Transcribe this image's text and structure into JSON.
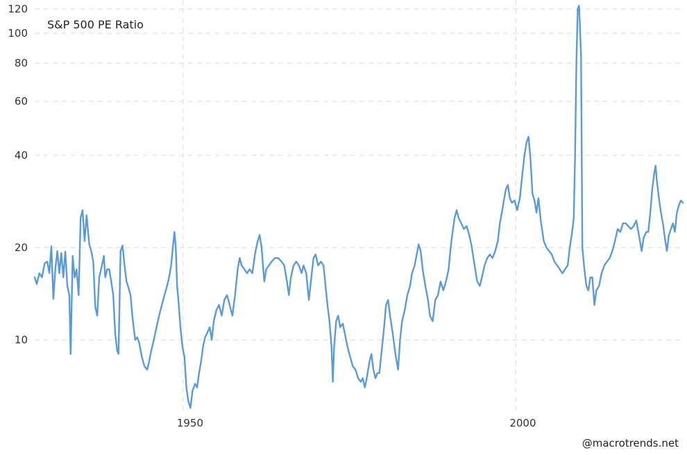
{
  "chart_data": {
    "type": "line",
    "title": "S&P 500 PE Ratio",
    "xlabel": "",
    "ylabel": "",
    "yscale": "log",
    "ylim": [
      5.5,
      125
    ],
    "xlim": [
      1927.7,
      2025.2
    ],
    "y_ticks": [
      10,
      20,
      40,
      60,
      80,
      100,
      120
    ],
    "x_ticks": [
      1950,
      2000
    ],
    "grid": {
      "horizontal": true,
      "vertical": true,
      "style": "dashed"
    },
    "legend": null,
    "line_color": "#5b9bd5",
    "series": [
      {
        "name": "S&P 500 PE Ratio",
        "points": [
          [
            1927.7,
            16.0
          ],
          [
            1928.0,
            15.2
          ],
          [
            1928.4,
            16.5
          ],
          [
            1928.8,
            16.0
          ],
          [
            1929.2,
            17.8
          ],
          [
            1929.6,
            18.0
          ],
          [
            1929.9,
            16.5
          ],
          [
            1930.2,
            20.2
          ],
          [
            1930.5,
            13.6
          ],
          [
            1930.8,
            17.0
          ],
          [
            1931.1,
            19.5
          ],
          [
            1931.4,
            16.5
          ],
          [
            1931.7,
            19.2
          ],
          [
            1932.0,
            16.0
          ],
          [
            1932.3,
            19.4
          ],
          [
            1932.6,
            15.0
          ],
          [
            1932.9,
            14.0
          ],
          [
            1933.1,
            9.0
          ],
          [
            1933.4,
            18.8
          ],
          [
            1933.7,
            16.0
          ],
          [
            1934.0,
            17.0
          ],
          [
            1934.3,
            14.0
          ],
          [
            1934.6,
            25.0
          ],
          [
            1934.9,
            26.5
          ],
          [
            1935.2,
            21.0
          ],
          [
            1935.5,
            25.5
          ],
          [
            1935.9,
            20.5
          ],
          [
            1936.2,
            19.5
          ],
          [
            1936.5,
            18.0
          ],
          [
            1936.8,
            12.8
          ],
          [
            1937.1,
            12.0
          ],
          [
            1937.4,
            16.0
          ],
          [
            1937.8,
            17.5
          ],
          [
            1938.1,
            18.8
          ],
          [
            1938.3,
            16.0
          ],
          [
            1938.6,
            17.0
          ],
          [
            1938.9,
            17.0
          ],
          [
            1939.2,
            15.5
          ],
          [
            1939.5,
            14.0
          ],
          [
            1939.8,
            10.5
          ],
          [
            1940.1,
            9.2
          ],
          [
            1940.3,
            9.0
          ],
          [
            1940.6,
            19.5
          ],
          [
            1940.9,
            20.3
          ],
          [
            1941.2,
            17.5
          ],
          [
            1941.5,
            15.5
          ],
          [
            1941.8,
            14.8
          ],
          [
            1942.1,
            14.0
          ],
          [
            1942.4,
            11.8
          ],
          [
            1942.8,
            10.0
          ],
          [
            1943.1,
            10.2
          ],
          [
            1943.4,
            9.8
          ],
          [
            1943.8,
            8.8
          ],
          [
            1944.2,
            8.2
          ],
          [
            1944.6,
            8.0
          ],
          [
            1944.9,
            8.5
          ],
          [
            1945.2,
            9.2
          ],
          [
            1945.6,
            10.0
          ],
          [
            1946.0,
            11.0
          ],
          [
            1946.4,
            12.0
          ],
          [
            1946.8,
            13.0
          ],
          [
            1947.2,
            14.0
          ],
          [
            1947.6,
            15.0
          ],
          [
            1947.9,
            16.0
          ],
          [
            1948.2,
            17.5
          ],
          [
            1948.5,
            20.5
          ],
          [
            1948.7,
            22.5
          ],
          [
            1948.9,
            20.0
          ],
          [
            1949.1,
            15.0
          ],
          [
            1949.3,
            13.5
          ],
          [
            1949.6,
            11.0
          ],
          [
            1949.9,
            9.5
          ],
          [
            1950.2,
            8.8
          ],
          [
            1950.5,
            7.0
          ],
          [
            1950.8,
            6.3
          ],
          [
            1951.1,
            6.0
          ],
          [
            1951.4,
            6.8
          ],
          [
            1951.8,
            7.2
          ],
          [
            1952.1,
            7.0
          ],
          [
            1952.4,
            7.8
          ],
          [
            1952.7,
            8.5
          ],
          [
            1953.0,
            9.5
          ],
          [
            1953.3,
            10.2
          ],
          [
            1953.6,
            10.5
          ],
          [
            1954.0,
            11.0
          ],
          [
            1954.3,
            10.0
          ],
          [
            1954.6,
            11.5
          ],
          [
            1955.0,
            12.5
          ],
          [
            1955.4,
            13.0
          ],
          [
            1955.8,
            12.0
          ],
          [
            1956.2,
            13.5
          ],
          [
            1956.6,
            14.0
          ],
          [
            1957.0,
            13.0
          ],
          [
            1957.4,
            12.0
          ],
          [
            1957.8,
            14.0
          ],
          [
            1958.2,
            17.0
          ],
          [
            1958.5,
            18.5
          ],
          [
            1958.8,
            17.5
          ],
          [
            1959.2,
            17.0
          ],
          [
            1959.6,
            16.5
          ],
          [
            1960.0,
            17.0
          ],
          [
            1960.4,
            16.5
          ],
          [
            1960.8,
            19.0
          ],
          [
            1961.2,
            21.0
          ],
          [
            1961.5,
            22.0
          ],
          [
            1961.8,
            20.0
          ],
          [
            1962.2,
            15.5
          ],
          [
            1962.5,
            17.0
          ],
          [
            1962.9,
            17.5
          ],
          [
            1963.3,
            18.0
          ],
          [
            1963.8,
            18.5
          ],
          [
            1964.3,
            18.5
          ],
          [
            1964.8,
            18.0
          ],
          [
            1965.2,
            17.5
          ],
          [
            1965.6,
            15.5
          ],
          [
            1965.9,
            14.0
          ],
          [
            1966.2,
            16.0
          ],
          [
            1966.6,
            17.5
          ],
          [
            1967.0,
            18.0
          ],
          [
            1967.4,
            17.5
          ],
          [
            1967.8,
            16.5
          ],
          [
            1968.1,
            17.5
          ],
          [
            1968.5,
            16.5
          ],
          [
            1968.9,
            13.5
          ],
          [
            1969.2,
            15.5
          ],
          [
            1969.6,
            18.5
          ],
          [
            1969.9,
            19.0
          ],
          [
            1970.3,
            17.5
          ],
          [
            1970.7,
            18.0
          ],
          [
            1971.1,
            17.5
          ],
          [
            1971.4,
            15.0
          ],
          [
            1971.7,
            13.0
          ],
          [
            1972.0,
            11.5
          ],
          [
            1972.3,
            9.5
          ],
          [
            1972.5,
            7.3
          ],
          [
            1972.7,
            9.5
          ],
          [
            1973.0,
            11.5
          ],
          [
            1973.3,
            12.0
          ],
          [
            1973.6,
            11.0
          ],
          [
            1974.0,
            11.3
          ],
          [
            1974.3,
            10.5
          ],
          [
            1974.7,
            9.5
          ],
          [
            1975.1,
            8.8
          ],
          [
            1975.5,
            8.2
          ],
          [
            1975.9,
            8.0
          ],
          [
            1976.3,
            7.5
          ],
          [
            1976.7,
            7.3
          ],
          [
            1977.0,
            7.5
          ],
          [
            1977.3,
            7.0
          ],
          [
            1977.6,
            7.5
          ],
          [
            1978.0,
            8.5
          ],
          [
            1978.3,
            9.0
          ],
          [
            1978.6,
            8.0
          ],
          [
            1978.9,
            7.5
          ],
          [
            1979.2,
            7.8
          ],
          [
            1979.5,
            7.8
          ],
          [
            1979.8,
            9.0
          ],
          [
            1980.2,
            11.0
          ],
          [
            1980.5,
            13.0
          ],
          [
            1980.8,
            13.5
          ],
          [
            1981.1,
            12.0
          ],
          [
            1981.5,
            10.5
          ],
          [
            1981.9,
            9.0
          ],
          [
            1982.3,
            8.0
          ],
          [
            1982.6,
            10.0
          ],
          [
            1982.9,
            11.5
          ],
          [
            1983.3,
            12.5
          ],
          [
            1983.7,
            14.0
          ],
          [
            1984.1,
            15.0
          ],
          [
            1984.4,
            16.5
          ],
          [
            1984.8,
            17.5
          ],
          [
            1985.1,
            19.0
          ],
          [
            1985.4,
            20.5
          ],
          [
            1985.7,
            19.5
          ],
          [
            1986.0,
            17.0
          ],
          [
            1986.4,
            15.0
          ],
          [
            1986.8,
            13.5
          ],
          [
            1987.1,
            12.0
          ],
          [
            1987.5,
            11.5
          ],
          [
            1987.9,
            13.5
          ],
          [
            1988.3,
            14.0
          ],
          [
            1988.7,
            15.5
          ],
          [
            1989.1,
            14.5
          ],
          [
            1989.5,
            15.5
          ],
          [
            1989.9,
            17.0
          ],
          [
            1990.2,
            20.0
          ],
          [
            1990.5,
            22.5
          ],
          [
            1990.8,
            25.0
          ],
          [
            1991.1,
            26.5
          ],
          [
            1991.4,
            25.0
          ],
          [
            1991.8,
            24.0
          ],
          [
            1992.2,
            23.0
          ],
          [
            1992.6,
            23.5
          ],
          [
            1993.0,
            22.0
          ],
          [
            1993.4,
            20.0
          ],
          [
            1993.8,
            17.5
          ],
          [
            1994.2,
            15.5
          ],
          [
            1994.6,
            15.0
          ],
          [
            1994.9,
            16.0
          ],
          [
            1995.3,
            17.5
          ],
          [
            1995.7,
            18.5
          ],
          [
            1996.1,
            19.0
          ],
          [
            1996.5,
            18.5
          ],
          [
            1996.9,
            19.5
          ],
          [
            1997.3,
            21.0
          ],
          [
            1997.6,
            24.0
          ],
          [
            1997.9,
            26.0
          ],
          [
            1998.2,
            28.5
          ],
          [
            1998.5,
            31.0
          ],
          [
            1998.8,
            32.0
          ],
          [
            1999.1,
            29.0
          ],
          [
            1999.4,
            28.0
          ],
          [
            1999.8,
            28.5
          ],
          [
            2000.2,
            26.5
          ],
          [
            2000.6,
            29.0
          ],
          [
            2001.0,
            35.0
          ],
          [
            2001.3,
            40.0
          ],
          [
            2001.6,
            44.0
          ],
          [
            2001.9,
            46.0
          ],
          [
            2002.2,
            39.0
          ],
          [
            2002.5,
            30.0
          ],
          [
            2002.8,
            28.5
          ],
          [
            2003.1,
            26.0
          ],
          [
            2003.4,
            29.0
          ],
          [
            2003.8,
            24.0
          ],
          [
            2004.2,
            21.0
          ],
          [
            2004.6,
            20.0
          ],
          [
            2005.0,
            19.5
          ],
          [
            2005.4,
            19.0
          ],
          [
            2005.8,
            18.0
          ],
          [
            2006.2,
            17.5
          ],
          [
            2006.6,
            17.0
          ],
          [
            2007.0,
            16.5
          ],
          [
            2007.4,
            17.0
          ],
          [
            2007.8,
            17.5
          ],
          [
            2008.1,
            20.0
          ],
          [
            2008.4,
            22.0
          ],
          [
            2008.7,
            25.0
          ],
          [
            2008.9,
            40.0
          ],
          [
            2009.1,
            80.0
          ],
          [
            2009.3,
            120.0
          ],
          [
            2009.5,
            123.0
          ],
          [
            2009.6,
            110.0
          ],
          [
            2009.8,
            85.0
          ],
          [
            2010.0,
            20.0
          ],
          [
            2010.3,
            17.0
          ],
          [
            2010.6,
            15.0
          ],
          [
            2010.9,
            14.5
          ],
          [
            2011.2,
            16.0
          ],
          [
            2011.5,
            16.0
          ],
          [
            2011.8,
            13.0
          ],
          [
            2012.1,
            14.5
          ],
          [
            2012.5,
            15.0
          ],
          [
            2012.9,
            16.5
          ],
          [
            2013.3,
            17.5
          ],
          [
            2013.7,
            18.0
          ],
          [
            2014.1,
            18.5
          ],
          [
            2014.5,
            19.5
          ],
          [
            2014.9,
            21.0
          ],
          [
            2015.3,
            23.0
          ],
          [
            2015.7,
            22.5
          ],
          [
            2016.1,
            24.0
          ],
          [
            2016.5,
            24.0
          ],
          [
            2016.9,
            23.5
          ],
          [
            2017.3,
            23.0
          ],
          [
            2017.7,
            23.5
          ],
          [
            2018.1,
            24.5
          ],
          [
            2018.5,
            22.0
          ],
          [
            2018.9,
            19.5
          ],
          [
            2019.2,
            21.5
          ],
          [
            2019.6,
            22.5
          ],
          [
            2019.9,
            22.5
          ],
          [
            2020.2,
            26.0
          ],
          [
            2020.5,
            31.0
          ],
          [
            2020.8,
            35.0
          ],
          [
            2021.0,
            37.0
          ],
          [
            2021.2,
            33.0
          ],
          [
            2021.5,
            29.0
          ],
          [
            2021.8,
            26.0
          ],
          [
            2022.1,
            24.0
          ],
          [
            2022.4,
            21.5
          ],
          [
            2022.7,
            19.5
          ],
          [
            2023.0,
            22.0
          ],
          [
            2023.3,
            23.0
          ],
          [
            2023.6,
            24.0
          ],
          [
            2023.9,
            22.5
          ],
          [
            2024.2,
            26.0
          ],
          [
            2024.5,
            27.5
          ],
          [
            2024.8,
            28.5
          ],
          [
            2025.1,
            28.0
          ]
        ]
      }
    ]
  },
  "labels": {
    "title": "S&P 500 PE Ratio",
    "credit": "@macrotrends.net",
    "y_ticks": [
      "120",
      "100",
      "80",
      "60",
      "40",
      "20",
      "10"
    ],
    "x_ticks": [
      "1950",
      "2000"
    ]
  }
}
